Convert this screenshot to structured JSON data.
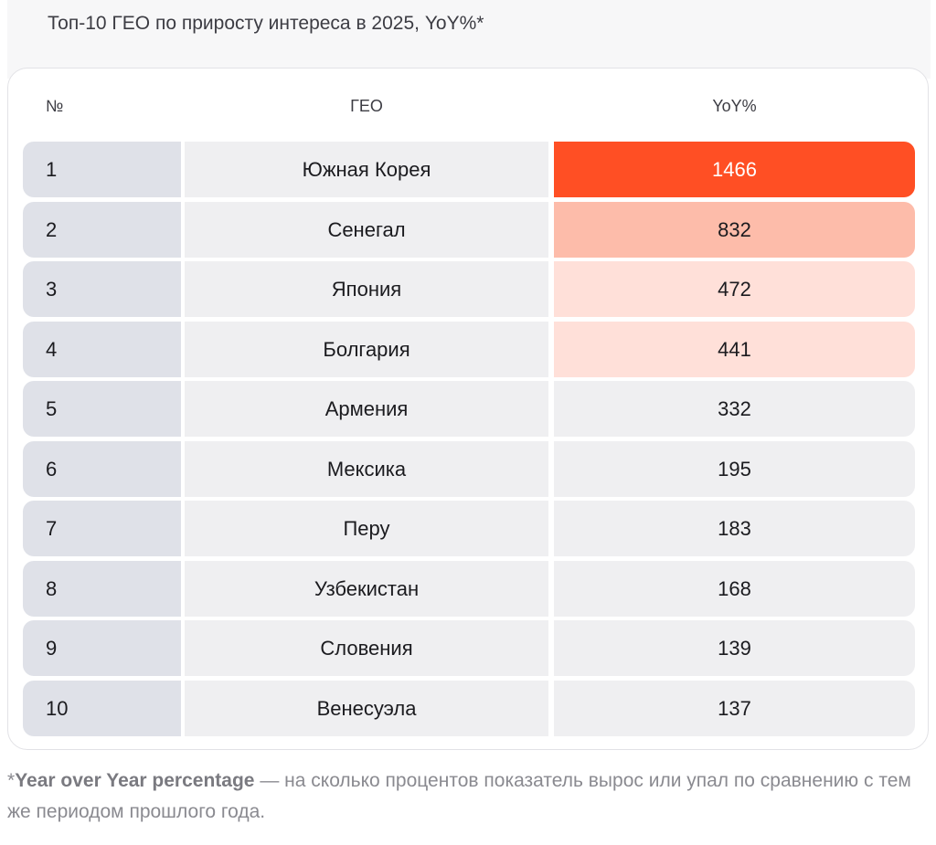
{
  "title": "Топ-10 ГЕО по приросту интереса в 2025, YoY%*",
  "chart_data": {
    "type": "table",
    "title": "Топ-10 ГЕО по приросту интереса в 2025, YoY%*",
    "columns": [
      "№",
      "ГЕО",
      "YoY%"
    ],
    "rows": [
      {
        "rank": "1",
        "geo": "Южная Корея",
        "yoy": "1466",
        "highlight": "#ff4f24"
      },
      {
        "rank": "2",
        "geo": "Сенегал",
        "yoy": "832",
        "highlight": "#fdbcaa"
      },
      {
        "rank": "3",
        "geo": "Япония",
        "yoy": "472",
        "highlight": "#ffe0d9"
      },
      {
        "rank": "4",
        "geo": "Болгария",
        "yoy": "441",
        "highlight": "#ffe0d9"
      },
      {
        "rank": "5",
        "geo": "Армения",
        "yoy": "332",
        "highlight": null
      },
      {
        "rank": "6",
        "geo": "Мексика",
        "yoy": "195",
        "highlight": null
      },
      {
        "rank": "7",
        "geo": "Перу",
        "yoy": "183",
        "highlight": null
      },
      {
        "rank": "8",
        "geo": "Узбекистан",
        "yoy": "168",
        "highlight": null
      },
      {
        "rank": "9",
        "geo": "Словения",
        "yoy": "139",
        "highlight": null
      },
      {
        "rank": "10",
        "geo": "Венесуэла",
        "yoy": "137",
        "highlight": null
      }
    ]
  },
  "footnote": {
    "marker": "*",
    "term": "Year over Year percentage",
    "text": " — на сколько процентов показатель вырос или упал по сравнению с тем же периодом прошлого года."
  },
  "colors": {
    "rank_cell": "#dfe1e8",
    "cell": "#efeff1",
    "accent_strong": "#ff4f24",
    "accent_medium": "#fdbcaa",
    "accent_light": "#ffe0d9"
  }
}
